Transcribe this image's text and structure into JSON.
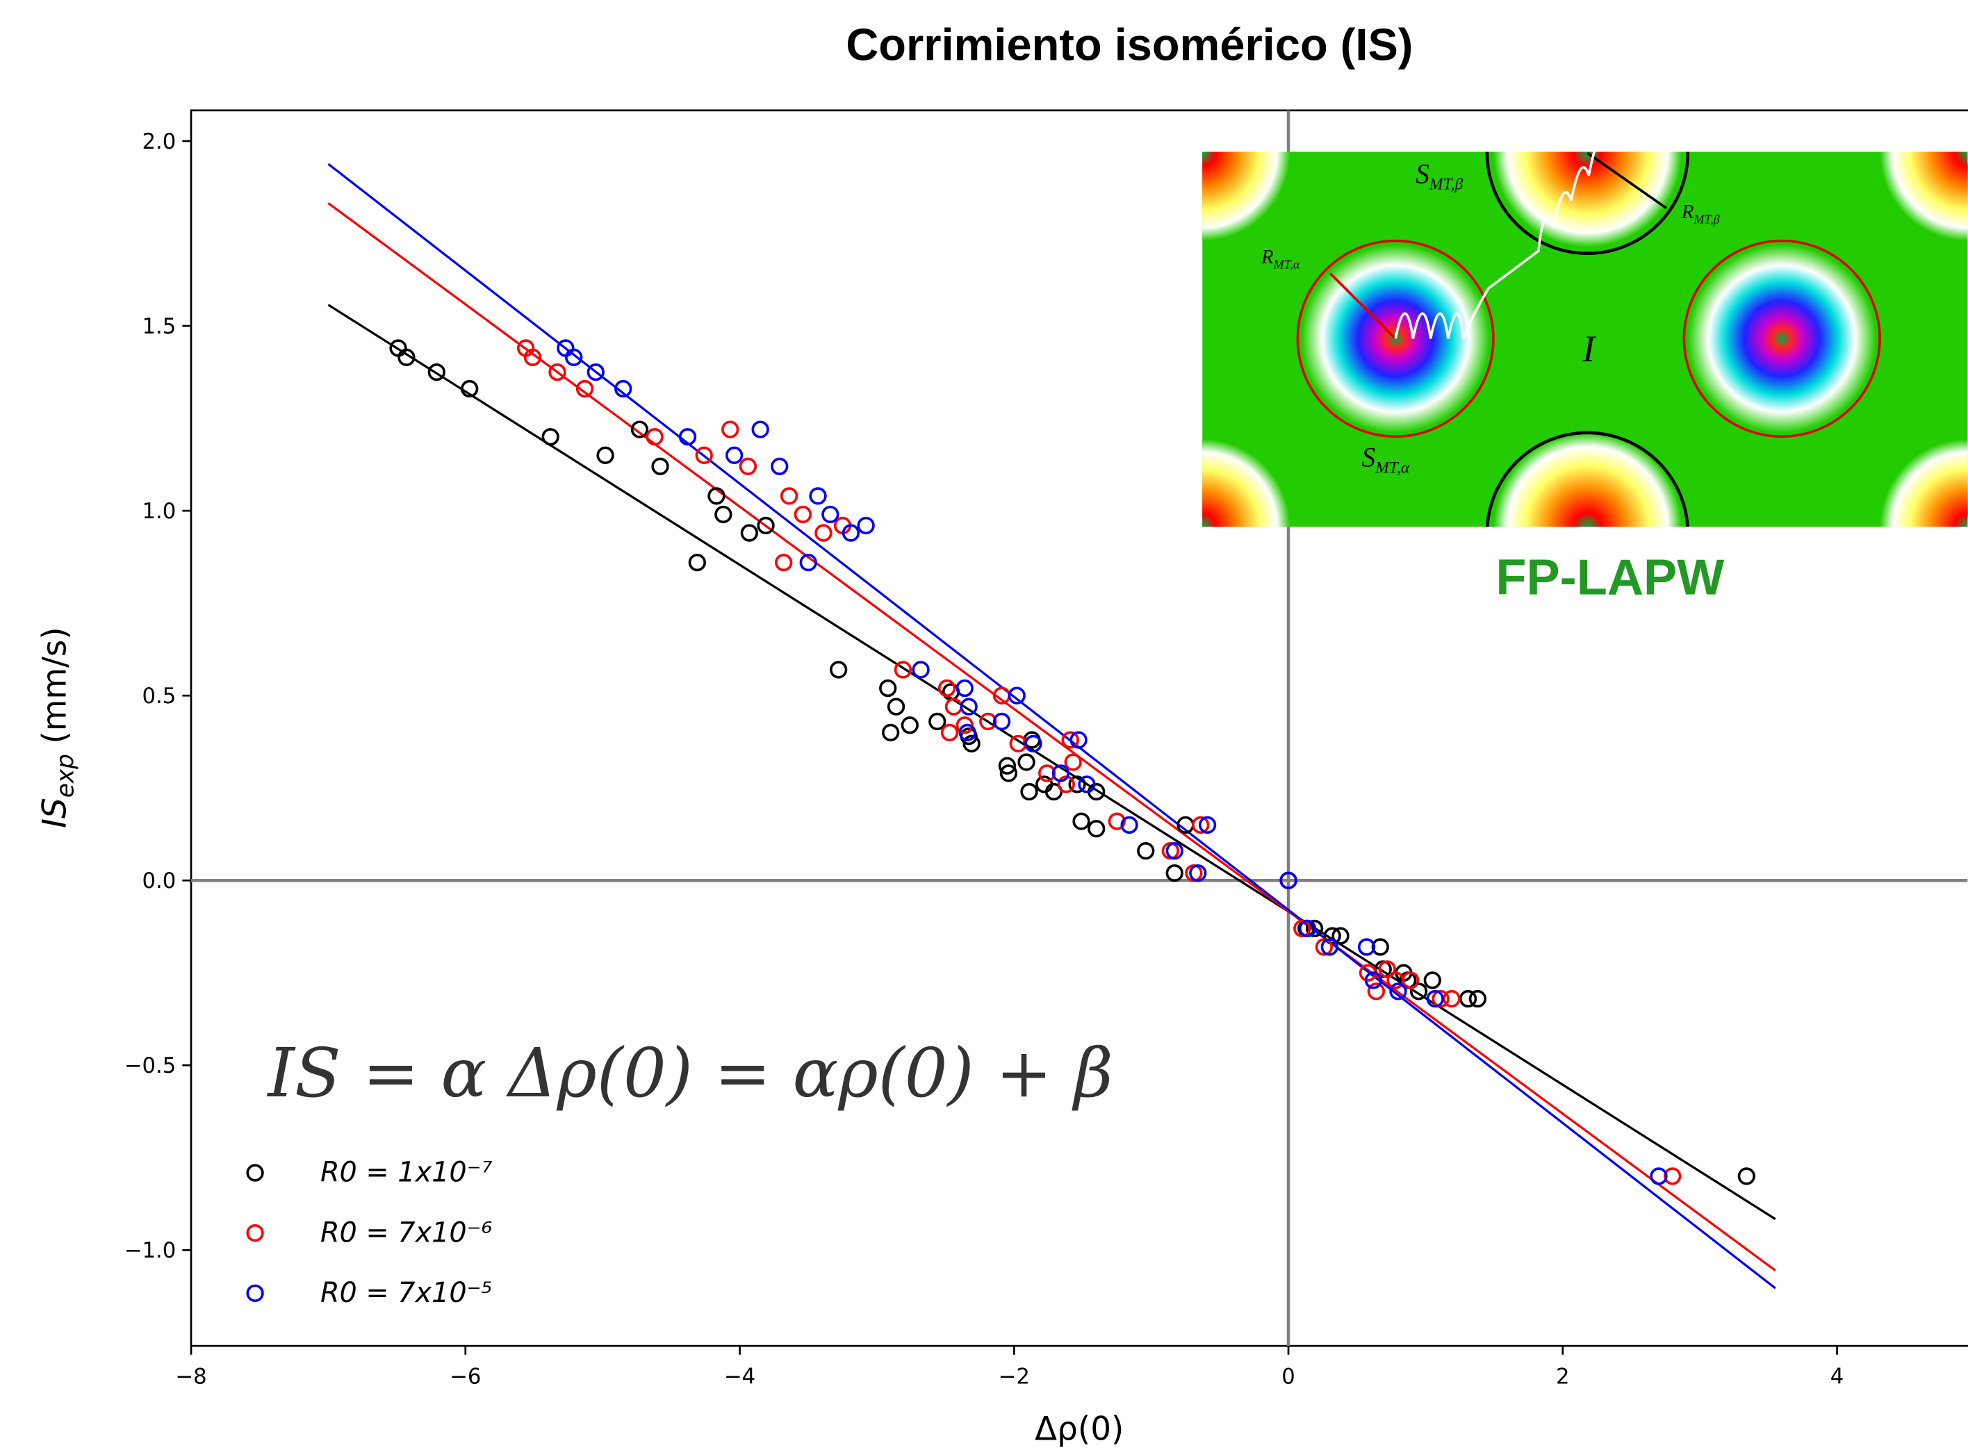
{
  "chart_data": {
    "type": "scatter",
    "title": "Corrimiento isomérico (IS)",
    "xlabel": "Δρ(0)",
    "ylabel": {
      "main": "IS",
      "sub": "exp",
      "unit": "(mm/s)"
    },
    "equation": "IS = α Δρ(0) = αρ(0) + β",
    "xlim": [
      -8,
      4.95
    ],
    "ylim": [
      -1.259,
      2.083
    ],
    "xticks": [
      {
        "value": -8,
        "label": "−8"
      },
      {
        "value": -6,
        "label": "−6"
      },
      {
        "value": -4,
        "label": "−4"
      },
      {
        "value": -2,
        "label": "−2"
      },
      0,
      2,
      4
    ],
    "yticks": [
      {
        "value": 2,
        "label": "2.0"
      },
      {
        "value": 1.5,
        "label": "1.5"
      },
      {
        "value": 1,
        "label": "1.0"
      },
      {
        "value": 0.5,
        "label": "0.5"
      },
      {
        "value": 0,
        "label": "0.0"
      },
      {
        "value": -0.5,
        "label": "−0.5"
      },
      {
        "value": -1,
        "label": "−1.0"
      }
    ],
    "zero_lines": true,
    "series": [
      {
        "name": "R0 = 1x10⁻⁷",
        "color": "#000000",
        "x": [
          -6.49,
          -6.43,
          -6.21,
          -5.97,
          -5.38,
          -4.98,
          -4.73,
          -4.58,
          -4.31,
          -4.17,
          -4.12,
          -3.93,
          -3.81,
          -3.28,
          -2.92,
          -2.86,
          -2.9,
          -2.76,
          -2.56,
          -2.46,
          -2.33,
          -2.31,
          -2.05,
          -2.04,
          -1.89,
          -1.87,
          -1.91,
          -1.78,
          -1.71,
          -1.54,
          -1.51,
          -1.4,
          -1.4,
          -1.04,
          -0.83,
          -0.75,
          0,
          0.13,
          0.19,
          0.32,
          0.38,
          0.67,
          0.69,
          0.84,
          0.87,
          0.95,
          1.05,
          1.31,
          1.38,
          3.34
        ],
        "y": [
          1.44,
          1.415,
          1.375,
          1.33,
          1.2,
          1.15,
          1.22,
          1.12,
          0.86,
          1.04,
          0.99,
          0.94,
          0.96,
          0.57,
          0.52,
          0.47,
          0.4,
          0.42,
          0.43,
          0.51,
          0.39,
          0.37,
          0.31,
          0.29,
          0.24,
          0.38,
          0.32,
          0.26,
          0.24,
          0.26,
          0.16,
          0.24,
          0.14,
          0.08,
          0.02,
          0.15,
          0,
          -0.13,
          -0.13,
          -0.15,
          -0.15,
          -0.18,
          -0.24,
          -0.25,
          -0.27,
          -0.3,
          -0.27,
          -0.32,
          -0.32,
          -0.8
        ]
      },
      {
        "name": "R0 = 7x10⁻⁶",
        "color": "#ff0000",
        "x": [
          -5.56,
          -5.51,
          -5.33,
          -5.13,
          -4.62,
          -4.26,
          -4.07,
          -3.94,
          -3.64,
          -3.54,
          -3.39,
          -3.25,
          -3.68,
          -2.81,
          -2.49,
          -2.44,
          -2.47,
          -2.36,
          -2.19,
          -2.09,
          -1.97,
          -1.76,
          -1.62,
          -1.59,
          -1.57,
          -1.25,
          -0.86,
          -0.69,
          -0.64,
          0,
          0.1,
          0.26,
          0.58,
          0.64,
          0.72,
          0.78,
          0.89,
          1.11,
          1.19,
          2.8
        ],
        "y": [
          1.44,
          1.415,
          1.375,
          1.33,
          1.2,
          1.15,
          1.22,
          1.12,
          1.04,
          0.99,
          0.94,
          0.96,
          0.86,
          0.57,
          0.52,
          0.47,
          0.4,
          0.42,
          0.43,
          0.5,
          0.37,
          0.29,
          0.26,
          0.38,
          0.32,
          0.16,
          0.08,
          0.02,
          0.15,
          0,
          -0.13,
          -0.18,
          -0.25,
          -0.3,
          -0.24,
          -0.27,
          -0.27,
          -0.32,
          -0.32,
          -0.8
        ]
      },
      {
        "name": "R0 = 7x10⁻⁵",
        "color": "#0000ff",
        "x": [
          -5.27,
          -5.21,
          -5.05,
          -4.85,
          -4.38,
          -4.04,
          -3.85,
          -3.71,
          -3.43,
          -3.34,
          -3.19,
          -3.08,
          -3.5,
          -2.68,
          -2.36,
          -2.33,
          -2.34,
          -2.09,
          -1.98,
          -1.86,
          -1.66,
          -1.53,
          -1.47,
          -1.16,
          -0.83,
          -0.66,
          -0.59,
          0,
          0.14,
          0.3,
          0.57,
          0.62,
          0.8,
          1.07,
          2.7
        ],
        "y": [
          1.44,
          1.415,
          1.375,
          1.33,
          1.2,
          1.15,
          1.22,
          1.12,
          1.04,
          0.99,
          0.94,
          0.96,
          0.86,
          0.57,
          0.52,
          0.47,
          0.4,
          0.43,
          0.5,
          0.37,
          0.29,
          0.38,
          0.26,
          0.15,
          0.08,
          0.02,
          0.15,
          0,
          -0.13,
          -0.18,
          -0.18,
          -0.27,
          -0.3,
          -0.32,
          -0.8
        ]
      }
    ],
    "fit_lines": [
      {
        "color": "#000000",
        "x": [
          -7,
          3.55
        ],
        "y": [
          1.557,
          -0.916
        ]
      },
      {
        "color": "#ff0000",
        "x": [
          -7,
          3.55
        ],
        "y": [
          1.832,
          -1.055
        ]
      },
      {
        "color": "#0000ff",
        "x": [
          -7,
          3.55
        ],
        "y": [
          1.938,
          -1.103
        ]
      }
    ],
    "inset": {
      "caption": "FP-LAPW",
      "labels": [
        {
          "main": "S",
          "sub": "MT,β"
        },
        {
          "main": "R",
          "sub": "MT,β"
        },
        {
          "main": "R",
          "sub": "MT,α"
        },
        {
          "main": "I"
        },
        {
          "main": "S",
          "sub": "MT,α"
        }
      ]
    }
  }
}
